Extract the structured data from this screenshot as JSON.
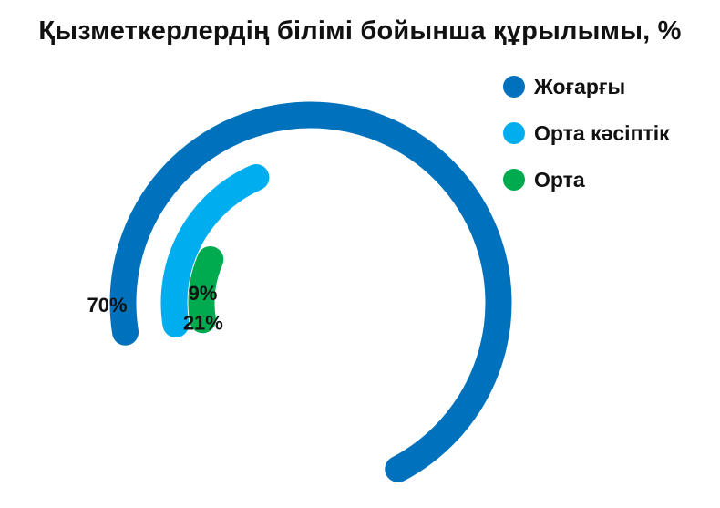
{
  "chart_data": {
    "type": "radial-bar",
    "title": "Қызметкерлердің білімі бойынша құрылымы, %",
    "categories": [
      "Жоғарғы",
      "Орта кәсіптік",
      "Орта"
    ],
    "values": [
      70,
      21,
      9
    ],
    "data_labels": [
      "70%",
      "21%",
      "9%"
    ],
    "unit": "%",
    "colors": [
      "#0071BC",
      "#00AEEF",
      "#00AA4F"
    ],
    "legend_position": "top-right",
    "xlabel": "",
    "ylabel": ""
  }
}
